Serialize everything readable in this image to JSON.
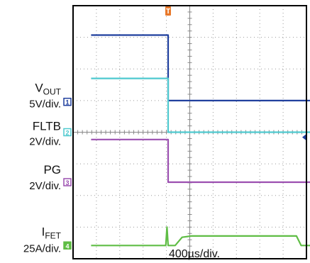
{
  "chart_data": {
    "type": "line",
    "title": "",
    "xlabel": "400µs/div.",
    "x_units_per_div": 400,
    "x_unit": "µs",
    "divisions": {
      "x": 10,
      "y": 8
    },
    "trigger_marker": "T",
    "trigger_time_us": 0,
    "trigger_level_marker_div": 3.84,
    "channels": [
      {
        "id": "vout",
        "name_main": "V",
        "name_sub": "OUT",
        "scale": "5V/div.",
        "channel_number": "1",
        "color": "#1f3f9e",
        "ground_level_div": 4.96,
        "points": [
          [
            -1320,
            7.07
          ],
          [
            0,
            7.07
          ],
          [
            0,
            5.0
          ],
          [
            4000,
            5.0
          ]
        ]
      },
      {
        "id": "fltb",
        "name_main": "FLTB",
        "name_sub": "",
        "scale": "2V/div.",
        "channel_number": "2",
        "color": "#4ec9cf",
        "ground_level_div": 4.0,
        "points": [
          [
            -1320,
            5.7
          ],
          [
            0,
            5.7
          ],
          [
            0,
            4.0
          ],
          [
            4000,
            4.0
          ]
        ]
      },
      {
        "id": "pg",
        "name_main": "PG",
        "name_sub": "",
        "scale": "2V/div.",
        "channel_number": "3",
        "color": "#9b4fb0",
        "ground_level_div": 2.42,
        "points": [
          [
            -1320,
            3.77
          ],
          [
            0,
            3.77
          ],
          [
            0,
            2.42
          ],
          [
            4000,
            2.42
          ]
        ]
      },
      {
        "id": "ifet",
        "name_main": "I",
        "name_sub": "FET",
        "scale": "25A/div.",
        "channel_number": "4",
        "color": "#5fbd45",
        "ground_level_div": 0.42,
        "points": [
          [
            -1320,
            0.42
          ],
          [
            -40,
            0.42
          ],
          [
            -20,
            1.0
          ],
          [
            0,
            0.42
          ],
          [
            120,
            0.42
          ],
          [
            240,
            0.68
          ],
          [
            400,
            0.72
          ],
          [
            1000,
            0.72
          ],
          [
            2200,
            0.72
          ],
          [
            2280,
            0.42
          ],
          [
            4000,
            0.42
          ]
        ]
      }
    ]
  }
}
